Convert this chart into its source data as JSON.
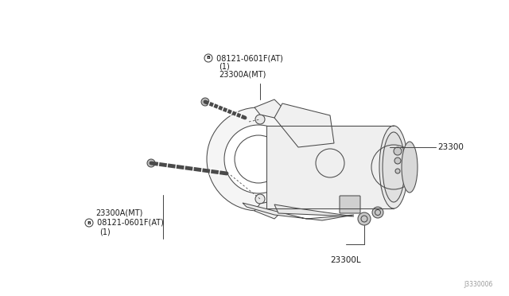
{
  "bg_color": "#ffffff",
  "line_color": "#4a4a4a",
  "text_color": "#1a1a1a",
  "watermark": "J3330006",
  "labels": {
    "top_bolt_b": "B 08121-0601F(AT)",
    "top_bolt_1": "  （1）",
    "top_bolt_part": "  23300A(MT)",
    "right_part": "23300",
    "bottom_part": "23300L",
    "bottom_bolt_part": "23300A(MT)",
    "bottom_bolt_b": "B 08121-0601F(AT)",
    "bottom_bolt_1": "  （1）"
  },
  "lw": 0.75,
  "lw_thick": 1.2,
  "fs": 7.0
}
